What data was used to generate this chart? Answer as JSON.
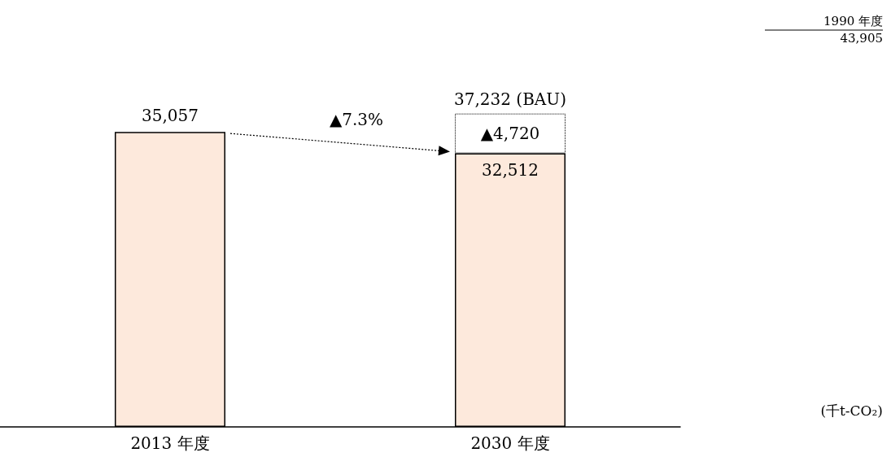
{
  "chart_data": {
    "type": "bar",
    "stacked": true,
    "categories": [
      "2013 年度",
      "2030 年度"
    ],
    "series": [
      {
        "color": "#fde9dc",
        "values": [
          35057,
          32512
        ],
        "value_labels": [
          "35,057",
          "32,512"
        ]
      },
      {
        "color": "#ffffff",
        "line_style": "dotted",
        "values": [
          null,
          4720
        ],
        "value_labels": [
          null,
          "▲4,720"
        ]
      }
    ],
    "totals": [
      null,
      "37,232 (BAU)"
    ],
    "tick_labels": "x",
    "grid": false,
    "annotations": [
      "▲7.3%",
      "1990 年度",
      "43,905",
      "(千t-CO₂)"
    ]
  }
}
